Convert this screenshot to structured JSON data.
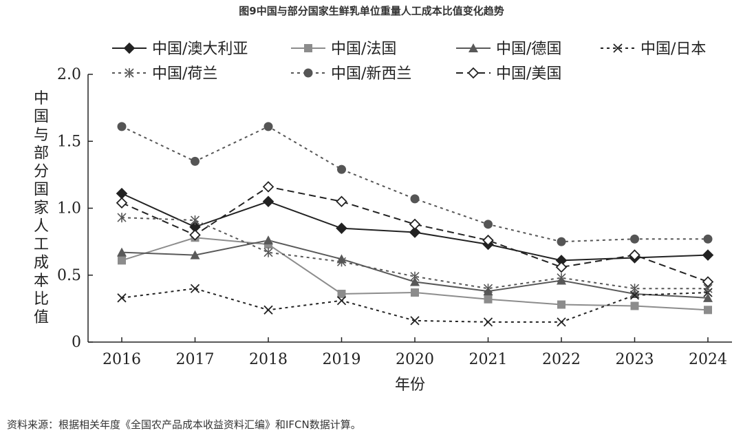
{
  "chart_data": {
    "type": "line",
    "title": "图9中国与部分国家生鲜乳单位重量人工成本比值变化趋势",
    "xlabel": "年份",
    "ylabel": "中国与部分国家人工成本比值",
    "x": [
      "2016",
      "2017",
      "2018",
      "2019",
      "2020",
      "2021",
      "2022",
      "2023",
      "2024"
    ],
    "ylim": [
      0,
      2.0
    ],
    "yticks": [
      "0",
      "0.5",
      "1.0",
      "1.5",
      "2.0"
    ],
    "grid": false,
    "legend_position": "top",
    "series": [
      {
        "name": "中国/澳大利亚",
        "values": [
          1.11,
          0.86,
          1.05,
          0.85,
          0.82,
          0.73,
          0.61,
          0.63,
          0.65
        ],
        "color": "#222222",
        "dash": "solid",
        "marker": "diamond-filled"
      },
      {
        "name": "中国/法国",
        "values": [
          0.61,
          0.78,
          0.73,
          0.36,
          0.37,
          0.32,
          0.28,
          0.27,
          0.24
        ],
        "color": "#8c8c8c",
        "dash": "solid",
        "marker": "square-filled"
      },
      {
        "name": "中国/德国",
        "values": [
          0.67,
          0.65,
          0.76,
          0.62,
          0.45,
          0.38,
          0.46,
          0.36,
          0.33
        ],
        "color": "#595959",
        "dash": "solid",
        "marker": "triangle-filled"
      },
      {
        "name": "中国/日本",
        "values": [
          0.33,
          0.4,
          0.24,
          0.31,
          0.16,
          0.15,
          0.15,
          0.35,
          0.37
        ],
        "color": "#222222",
        "dash": "short-dash",
        "marker": "x"
      },
      {
        "name": "中国/荷兰",
        "values": [
          0.93,
          0.91,
          0.67,
          0.6,
          0.49,
          0.4,
          0.48,
          0.4,
          0.4
        ],
        "color": "#555555",
        "dash": "short-dash",
        "marker": "asterisk"
      },
      {
        "name": "中国/新西兰",
        "values": [
          1.61,
          1.35,
          1.61,
          1.29,
          1.07,
          0.88,
          0.75,
          0.77,
          0.77
        ],
        "color": "#555555",
        "dash": "short-dash",
        "marker": "circle-filled"
      },
      {
        "name": "中国/美国",
        "values": [
          1.04,
          0.8,
          1.16,
          1.05,
          0.88,
          0.76,
          0.56,
          0.65,
          0.45
        ],
        "color": "#222222",
        "dash": "long-dash",
        "marker": "diamond-open"
      }
    ]
  },
  "source_note": "资料来源：根据相关年度《全国农产品成本收益资料汇编》和IFCN数据计算。"
}
